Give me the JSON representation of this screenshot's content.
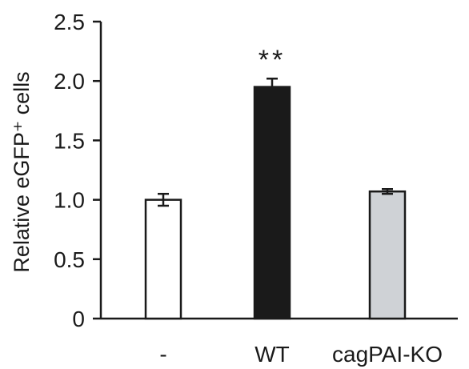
{
  "chart_data": {
    "type": "bar",
    "categories": [
      "-",
      "WT",
      "cagPAI-KO"
    ],
    "values": [
      1.0,
      1.95,
      1.07
    ],
    "errors": [
      0.05,
      0.07,
      0.02
    ],
    "colors": [
      "#ffffff",
      "#1a1a1a",
      "#cfd2d6"
    ],
    "ylabel": "Relative eGFP⁺ cells",
    "ylim": [
      0,
      2.5
    ],
    "yticks": [
      0,
      0.5,
      1.0,
      1.5,
      2.0,
      2.5
    ],
    "ytick_labels": [
      "0",
      "0.5",
      "1.0",
      "1.5",
      "2.0",
      "2.5"
    ],
    "annotations": [
      {
        "category": "WT",
        "text": "**"
      }
    ],
    "grid": false,
    "legend": "none"
  }
}
